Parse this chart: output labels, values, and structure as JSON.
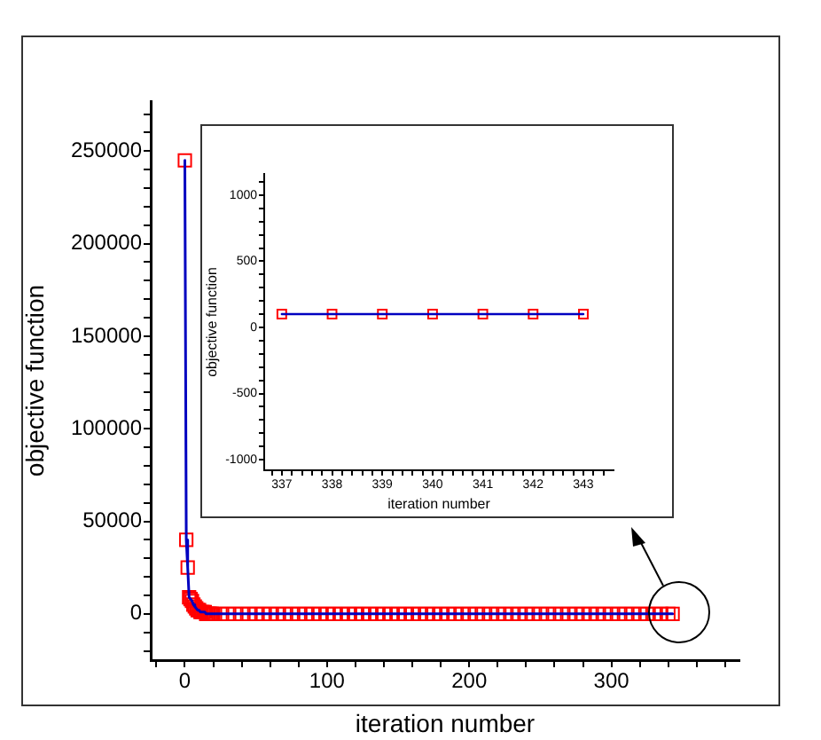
{
  "chart_data": [
    {
      "type": "line",
      "xlabel": "iteration number",
      "ylabel": "objective function",
      "marker": "square",
      "x": [
        0,
        1,
        2,
        3,
        4,
        5,
        6,
        7,
        8,
        9,
        10,
        11,
        12,
        13,
        14,
        15,
        16,
        17,
        18,
        19,
        20,
        25,
        30,
        35,
        40,
        45,
        50,
        55,
        60,
        65,
        70,
        75,
        80,
        85,
        90,
        95,
        100,
        105,
        110,
        115,
        120,
        125,
        130,
        135,
        140,
        145,
        150,
        155,
        160,
        165,
        170,
        175,
        180,
        185,
        190,
        195,
        200,
        205,
        210,
        215,
        220,
        225,
        230,
        235,
        240,
        245,
        250,
        255,
        260,
        265,
        270,
        275,
        280,
        285,
        290,
        295,
        300,
        305,
        310,
        315,
        320,
        325,
        330,
        335,
        340,
        343
      ],
      "series": [
        {
          "type": "scatter",
          "color": "#ff0000",
          "values": [
            245000,
            40000,
            25000,
            9000,
            8000,
            7000,
            5000,
            4000,
            3000,
            2000,
            2000,
            1000,
            1000,
            1000,
            1000,
            0,
            0,
            0,
            0,
            0,
            0,
            0,
            0,
            0,
            0,
            0,
            0,
            0,
            0,
            0,
            0,
            0,
            0,
            0,
            0,
            0,
            0,
            0,
            0,
            0,
            0,
            0,
            0,
            0,
            0,
            0,
            0,
            0,
            0,
            0,
            0,
            0,
            0,
            0,
            0,
            0,
            0,
            0,
            0,
            0,
            0,
            0,
            0,
            0,
            0,
            0,
            0,
            0,
            0,
            0,
            0,
            0,
            0,
            0,
            0,
            0,
            0,
            0,
            0,
            0,
            0,
            0,
            0,
            0,
            0,
            0
          ]
        },
        {
          "type": "line",
          "color": "#0000c0",
          "marker": "none",
          "values": [
            245000,
            40000,
            25000,
            9000,
            8000,
            7000,
            5000,
            4000,
            3000,
            2000,
            2000,
            1000,
            1000,
            1000,
            1000,
            0,
            0,
            0,
            0,
            0,
            0,
            0,
            0,
            0,
            0,
            0,
            0,
            0,
            0,
            0,
            0,
            0,
            0,
            0,
            0,
            0,
            0,
            0,
            0,
            0,
            0,
            0,
            0,
            0,
            0,
            0,
            0,
            0,
            0,
            0,
            0,
            0,
            0,
            0,
            0,
            0,
            0,
            0,
            0,
            0,
            0,
            0,
            0,
            0,
            0,
            0,
            0,
            0,
            0,
            0,
            0,
            0,
            0,
            0,
            0,
            0,
            0,
            0,
            0,
            0,
            0,
            0,
            0,
            0,
            0,
            0
          ]
        }
      ],
      "xlim": [
        -24,
        390
      ],
      "xticks": [
        {
          "value": -20,
          "label": null
        },
        0,
        {
          "value": 20,
          "label": null
        },
        {
          "value": 40,
          "label": null
        },
        {
          "value": 60,
          "label": null
        },
        {
          "value": 80,
          "label": null
        },
        100,
        {
          "value": 120,
          "label": null
        },
        {
          "value": 140,
          "label": null
        },
        {
          "value": 160,
          "label": null
        },
        {
          "value": 180,
          "label": null
        },
        200,
        {
          "value": 220,
          "label": null
        },
        {
          "value": 240,
          "label": null
        },
        {
          "value": 260,
          "label": null
        },
        {
          "value": 280,
          "label": null
        },
        300,
        {
          "value": 320,
          "label": null
        },
        {
          "value": 340,
          "label": null
        },
        {
          "value": 360,
          "label": null
        },
        {
          "value": 380,
          "label": null
        }
      ],
      "ylim": [
        -25000,
        277000
      ],
      "yticks": [
        {
          "value": -20000,
          "label": null
        },
        {
          "value": -10000,
          "label": null
        },
        0,
        {
          "value": 10000,
          "label": null
        },
        {
          "value": 20000,
          "label": null
        },
        {
          "value": 30000,
          "label": null
        },
        {
          "value": 40000,
          "label": null
        },
        50000,
        {
          "value": 60000,
          "label": null
        },
        {
          "value": 70000,
          "label": null
        },
        {
          "value": 80000,
          "label": null
        },
        {
          "value": 90000,
          "label": null
        },
        100000,
        {
          "value": 110000,
          "label": null
        },
        {
          "value": 120000,
          "label": null
        },
        {
          "value": 130000,
          "label": null
        },
        {
          "value": 140000,
          "label": null
        },
        150000,
        {
          "value": 160000,
          "label": null
        },
        {
          "value": 170000,
          "label": null
        },
        {
          "value": 180000,
          "label": null
        },
        {
          "value": 190000,
          "label": null
        },
        200000,
        {
          "value": 210000,
          "label": null
        },
        {
          "value": 220000,
          "label": null
        },
        {
          "value": 230000,
          "label": null
        },
        {
          "value": 240000,
          "label": null
        },
        250000,
        {
          "value": 260000,
          "label": null
        },
        {
          "value": 270000,
          "label": null
        }
      ]
    },
    {
      "type": "line",
      "xlabel": "iteration number",
      "ylabel": "objective function",
      "marker": "square",
      "x": [
        337,
        338,
        339,
        340,
        341,
        342,
        343
      ],
      "series": [
        {
          "type": "line",
          "color": "#0000c0",
          "marker": "none",
          "values": [
            100,
            100,
            100,
            100,
            100,
            100,
            100
          ]
        },
        {
          "type": "scatter",
          "color": "#ff0000",
          "values": [
            100,
            100,
            100,
            100,
            100,
            100,
            100
          ]
        }
      ],
      "xlim": [
        336.65,
        343.6
      ],
      "xticks": [
        {
          "value": 336.8,
          "label": null
        },
        337,
        {
          "value": 337.2,
          "label": null
        },
        {
          "value": 337.4,
          "label": null
        },
        {
          "value": 337.6,
          "label": null
        },
        {
          "value": 337.8,
          "label": null
        },
        338,
        {
          "value": 338.2,
          "label": null
        },
        {
          "value": 338.4,
          "label": null
        },
        {
          "value": 338.6,
          "label": null
        },
        {
          "value": 338.8,
          "label": null
        },
        339,
        {
          "value": 339.2,
          "label": null
        },
        {
          "value": 339.4,
          "label": null
        },
        {
          "value": 339.6,
          "label": null
        },
        {
          "value": 339.8,
          "label": null
        },
        340,
        {
          "value": 340.2,
          "label": null
        },
        {
          "value": 340.4,
          "label": null
        },
        {
          "value": 340.6,
          "label": null
        },
        {
          "value": 340.8,
          "label": null
        },
        341,
        {
          "value": 341.2,
          "label": null
        },
        {
          "value": 341.4,
          "label": null
        },
        {
          "value": 341.6,
          "label": null
        },
        {
          "value": 341.8,
          "label": null
        },
        342,
        {
          "value": 342.2,
          "label": null
        },
        {
          "value": 342.4,
          "label": null
        },
        {
          "value": 342.6,
          "label": null
        },
        {
          "value": 342.8,
          "label": null
        },
        343,
        {
          "value": 343.2,
          "label": null
        },
        {
          "value": 343.4,
          "label": null
        }
      ],
      "ylim": [
        -1080,
        1160
      ],
      "yticks": [
        -1000,
        {
          "value": -900,
          "label": null
        },
        {
          "value": -800,
          "label": null
        },
        {
          "value": -700,
          "label": null
        },
        {
          "value": -600,
          "label": null
        },
        -500,
        {
          "value": -400,
          "label": null
        },
        {
          "value": -300,
          "label": null
        },
        {
          "value": -200,
          "label": null
        },
        {
          "value": -100,
          "label": null
        },
        0,
        {
          "value": 100,
          "label": null
        },
        {
          "value": 200,
          "label": null
        },
        {
          "value": 300,
          "label": null
        },
        {
          "value": 400,
          "label": null
        },
        500,
        {
          "value": 600,
          "label": null
        },
        {
          "value": 700,
          "label": null
        },
        {
          "value": 800,
          "label": null
        },
        {
          "value": 900,
          "label": null
        },
        1000,
        {
          "value": 1100,
          "label": null
        }
      ]
    }
  ]
}
